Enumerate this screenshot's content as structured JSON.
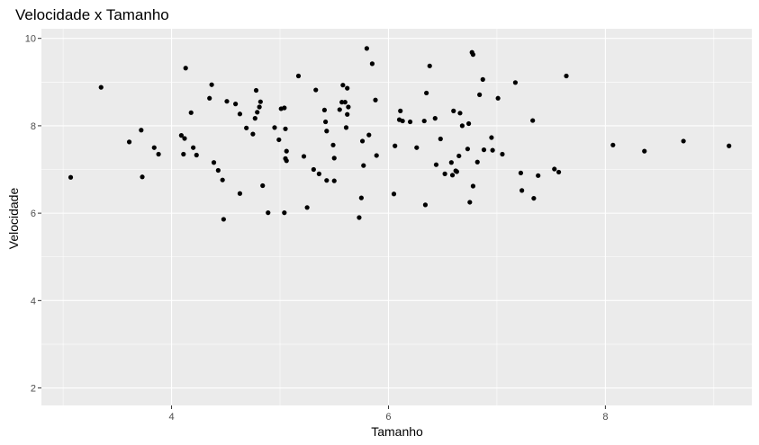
{
  "chart_data": {
    "type": "scatter",
    "title": "Velocidade x Tamanho",
    "xlabel": "Tamanho",
    "ylabel": "Velocidade",
    "xlim": [
      2.8,
      9.35
    ],
    "ylim": [
      1.6,
      10.22
    ],
    "xticks": [
      4,
      6,
      8
    ],
    "yticks": [
      2,
      4,
      6,
      8,
      10
    ],
    "grid": true,
    "colors": {
      "panel": "#ebebeb",
      "grid": "#ffffff",
      "point": "#000000",
      "tick": "#333333"
    },
    "points": [
      {
        "x": 3.07,
        "y": 6.82
      },
      {
        "x": 3.35,
        "y": 8.88
      },
      {
        "x": 3.61,
        "y": 7.63
      },
      {
        "x": 3.72,
        "y": 7.9
      },
      {
        "x": 3.73,
        "y": 6.83
      },
      {
        "x": 3.84,
        "y": 7.5
      },
      {
        "x": 3.88,
        "y": 7.35
      },
      {
        "x": 4.09,
        "y": 7.78
      },
      {
        "x": 4.11,
        "y": 7.35
      },
      {
        "x": 4.12,
        "y": 7.71
      },
      {
        "x": 4.13,
        "y": 9.32
      },
      {
        "x": 4.18,
        "y": 8.3
      },
      {
        "x": 4.2,
        "y": 7.5
      },
      {
        "x": 4.23,
        "y": 7.33
      },
      {
        "x": 4.35,
        "y": 8.63
      },
      {
        "x": 4.37,
        "y": 8.94
      },
      {
        "x": 4.39,
        "y": 7.16
      },
      {
        "x": 4.43,
        "y": 6.98
      },
      {
        "x": 4.47,
        "y": 6.76
      },
      {
        "x": 4.48,
        "y": 5.86
      },
      {
        "x": 4.51,
        "y": 8.56
      },
      {
        "x": 4.59,
        "y": 8.5
      },
      {
        "x": 4.63,
        "y": 8.27
      },
      {
        "x": 4.63,
        "y": 6.45
      },
      {
        "x": 4.69,
        "y": 7.95
      },
      {
        "x": 4.75,
        "y": 7.81
      },
      {
        "x": 4.77,
        "y": 8.17
      },
      {
        "x": 4.78,
        "y": 8.81
      },
      {
        "x": 4.79,
        "y": 8.31
      },
      {
        "x": 4.81,
        "y": 8.43
      },
      {
        "x": 4.82,
        "y": 8.55
      },
      {
        "x": 4.84,
        "y": 6.63
      },
      {
        "x": 4.89,
        "y": 6.01
      },
      {
        "x": 4.95,
        "y": 7.96
      },
      {
        "x": 4.99,
        "y": 7.68
      },
      {
        "x": 5.01,
        "y": 8.39
      },
      {
        "x": 5.04,
        "y": 8.41
      },
      {
        "x": 5.04,
        "y": 6.01
      },
      {
        "x": 5.05,
        "y": 7.93
      },
      {
        "x": 5.05,
        "y": 7.25
      },
      {
        "x": 5.06,
        "y": 7.42
      },
      {
        "x": 5.06,
        "y": 7.2
      },
      {
        "x": 5.17,
        "y": 9.14
      },
      {
        "x": 5.22,
        "y": 7.3
      },
      {
        "x": 5.25,
        "y": 6.13
      },
      {
        "x": 5.31,
        "y": 7.0
      },
      {
        "x": 5.33,
        "y": 8.82
      },
      {
        "x": 5.36,
        "y": 6.9
      },
      {
        "x": 5.41,
        "y": 8.36
      },
      {
        "x": 5.42,
        "y": 8.09
      },
      {
        "x": 5.43,
        "y": 7.88
      },
      {
        "x": 5.43,
        "y": 6.75
      },
      {
        "x": 5.49,
        "y": 7.56
      },
      {
        "x": 5.5,
        "y": 7.26
      },
      {
        "x": 5.5,
        "y": 6.74
      },
      {
        "x": 5.55,
        "y": 8.37
      },
      {
        "x": 5.57,
        "y": 8.54
      },
      {
        "x": 5.58,
        "y": 8.93
      },
      {
        "x": 5.6,
        "y": 8.54
      },
      {
        "x": 5.61,
        "y": 7.96
      },
      {
        "x": 5.62,
        "y": 8.86
      },
      {
        "x": 5.62,
        "y": 8.26
      },
      {
        "x": 5.63,
        "y": 8.43
      },
      {
        "x": 5.73,
        "y": 5.9
      },
      {
        "x": 5.75,
        "y": 6.35
      },
      {
        "x": 5.76,
        "y": 7.65
      },
      {
        "x": 5.77,
        "y": 7.09
      },
      {
        "x": 5.8,
        "y": 9.77
      },
      {
        "x": 5.82,
        "y": 7.79
      },
      {
        "x": 5.85,
        "y": 9.42
      },
      {
        "x": 5.88,
        "y": 8.59
      },
      {
        "x": 5.89,
        "y": 7.32
      },
      {
        "x": 6.05,
        "y": 6.44
      },
      {
        "x": 6.06,
        "y": 7.54
      },
      {
        "x": 6.1,
        "y": 8.14
      },
      {
        "x": 6.11,
        "y": 8.34
      },
      {
        "x": 6.13,
        "y": 8.11
      },
      {
        "x": 6.2,
        "y": 8.09
      },
      {
        "x": 6.26,
        "y": 7.5
      },
      {
        "x": 6.33,
        "y": 8.11
      },
      {
        "x": 6.34,
        "y": 6.19
      },
      {
        "x": 6.35,
        "y": 8.75
      },
      {
        "x": 6.38,
        "y": 9.37
      },
      {
        "x": 6.43,
        "y": 8.17
      },
      {
        "x": 6.44,
        "y": 7.11
      },
      {
        "x": 6.48,
        "y": 7.7
      },
      {
        "x": 6.52,
        "y": 6.9
      },
      {
        "x": 6.58,
        "y": 7.16
      },
      {
        "x": 6.59,
        "y": 6.87
      },
      {
        "x": 6.6,
        "y": 8.34
      },
      {
        "x": 6.62,
        "y": 6.97
      },
      {
        "x": 6.63,
        "y": 6.95
      },
      {
        "x": 6.65,
        "y": 7.31
      },
      {
        "x": 6.66,
        "y": 8.29
      },
      {
        "x": 6.68,
        "y": 8.0
      },
      {
        "x": 6.73,
        "y": 7.47
      },
      {
        "x": 6.74,
        "y": 8.05
      },
      {
        "x": 6.75,
        "y": 6.25
      },
      {
        "x": 6.77,
        "y": 9.68
      },
      {
        "x": 6.78,
        "y": 9.63
      },
      {
        "x": 6.78,
        "y": 6.62
      },
      {
        "x": 6.82,
        "y": 7.17
      },
      {
        "x": 6.84,
        "y": 8.71
      },
      {
        "x": 6.87,
        "y": 9.06
      },
      {
        "x": 6.88,
        "y": 7.45
      },
      {
        "x": 6.95,
        "y": 7.73
      },
      {
        "x": 6.96,
        "y": 7.44
      },
      {
        "x": 7.01,
        "y": 8.63
      },
      {
        "x": 7.05,
        "y": 7.35
      },
      {
        "x": 7.17,
        "y": 8.99
      },
      {
        "x": 7.22,
        "y": 6.92
      },
      {
        "x": 7.23,
        "y": 6.52
      },
      {
        "x": 7.33,
        "y": 8.12
      },
      {
        "x": 7.34,
        "y": 6.34
      },
      {
        "x": 7.38,
        "y": 6.86
      },
      {
        "x": 7.53,
        "y": 7.01
      },
      {
        "x": 7.57,
        "y": 6.94
      },
      {
        "x": 7.64,
        "y": 9.14
      },
      {
        "x": 8.07,
        "y": 7.56
      },
      {
        "x": 8.36,
        "y": 7.42
      },
      {
        "x": 8.72,
        "y": 7.65
      },
      {
        "x": 9.14,
        "y": 7.54
      }
    ]
  }
}
